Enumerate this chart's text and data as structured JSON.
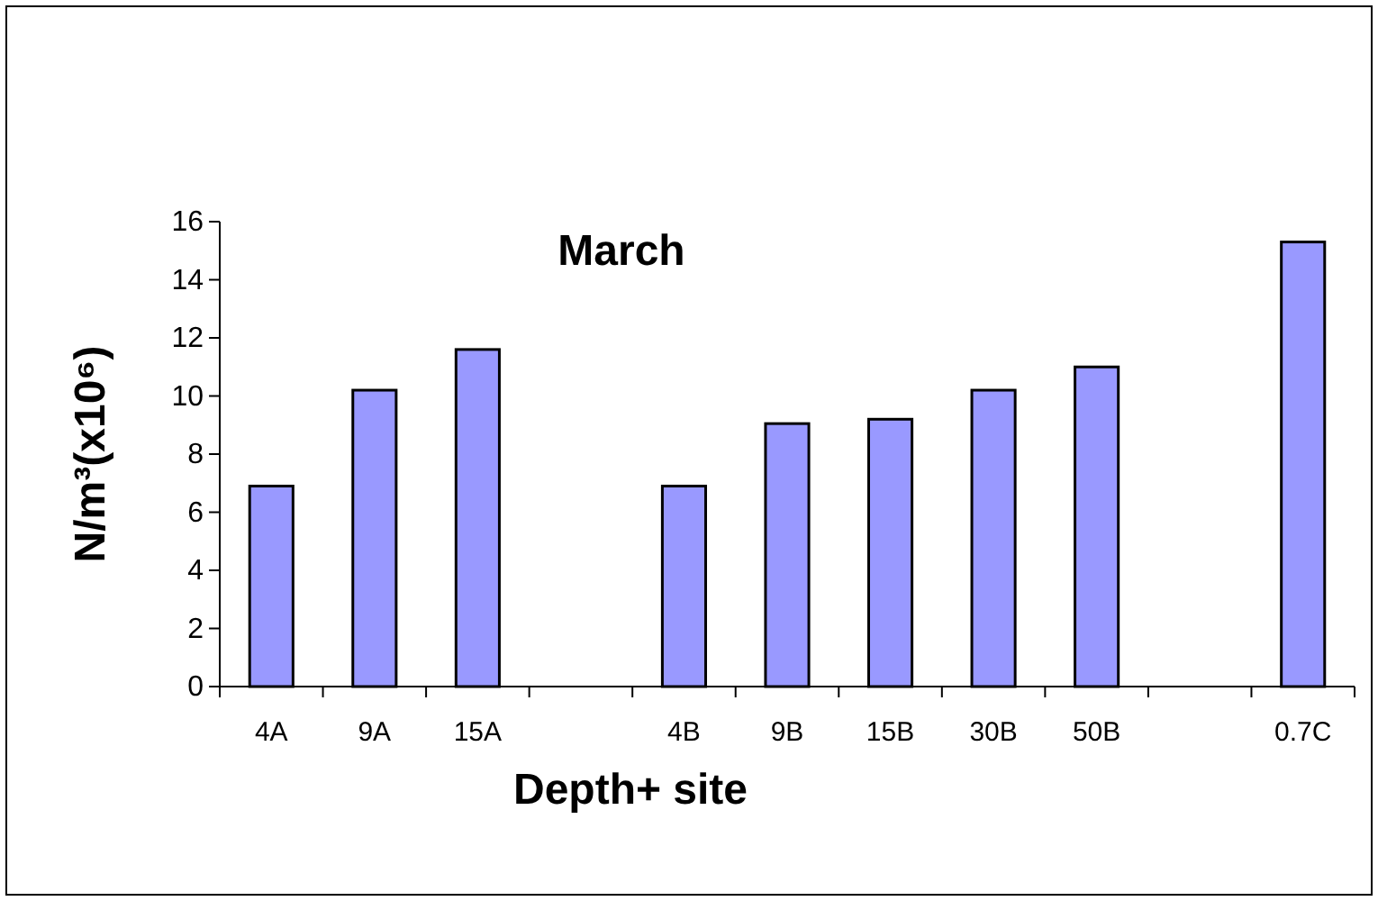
{
  "chart_data": {
    "type": "bar",
    "title": "March",
    "xlabel": "Depth+ site",
    "ylabel": "N/m³(x10⁶)",
    "categories": [
      "4A",
      "9A",
      "15A",
      null,
      "4B",
      "9B",
      "15B",
      "30B",
      "50B",
      null,
      "0.7C"
    ],
    "values": [
      6.9,
      10.2,
      11.6,
      null,
      6.9,
      9.05,
      9.2,
      10.2,
      11.0,
      null,
      15.3
    ],
    "color": "#9999ff",
    "ylim": [
      0,
      16
    ],
    "yticks": [
      0,
      2,
      4,
      6,
      8,
      10,
      12,
      14,
      16
    ],
    "grid": false
  }
}
